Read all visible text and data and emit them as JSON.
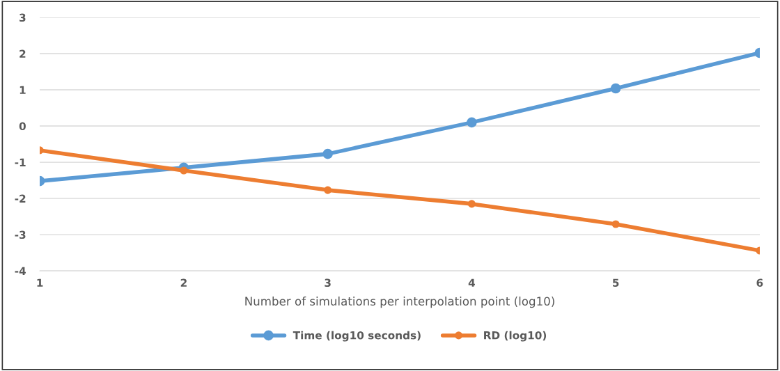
{
  "chart_data": {
    "type": "line",
    "xlabel": "Number of simulations per interpolation point (log10)",
    "x": [
      1,
      2,
      3,
      4,
      5,
      6
    ],
    "series": [
      {
        "name": "Time (log10 seconds)",
        "color": "#5b9bd5",
        "values": [
          -1.52,
          -1.15,
          -0.77,
          0.1,
          1.04,
          2.02
        ]
      },
      {
        "name": "RD (log10)",
        "color": "#ed7d31",
        "values": [
          -0.67,
          -1.23,
          -1.77,
          -2.15,
          -2.71,
          -3.44
        ]
      }
    ],
    "xlim": [
      1,
      6
    ],
    "xticks": [
      1,
      2,
      3,
      4,
      5,
      6
    ],
    "ylim": [
      -4,
      3
    ],
    "yticks": [
      -4,
      -3,
      -2,
      -1,
      0,
      1,
      2,
      3
    ],
    "grid": "y",
    "legend": "bottom",
    "marker": "circle",
    "line_style": "solid"
  }
}
